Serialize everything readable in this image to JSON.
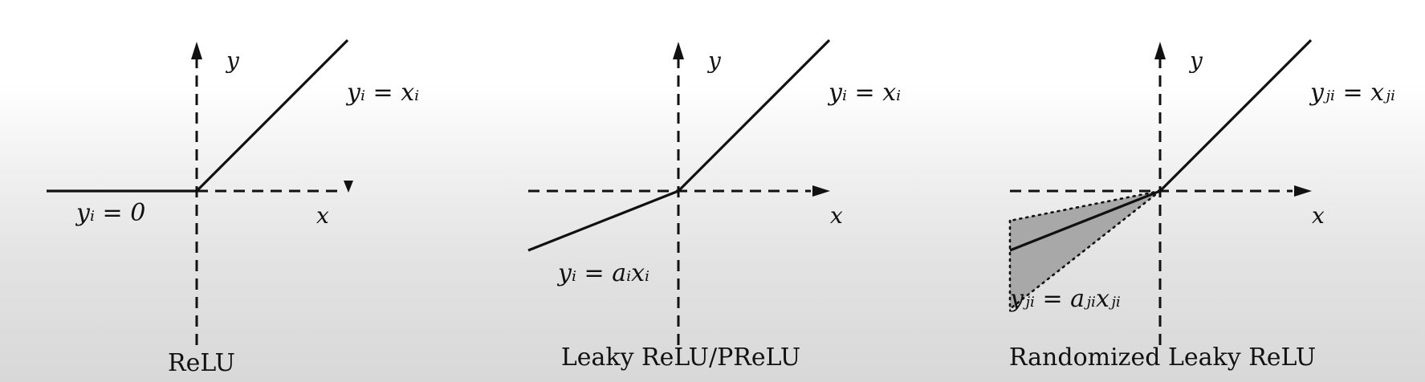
{
  "panels": [
    {
      "caption": "ReLU",
      "x_label": "x",
      "y_label": "y",
      "pos_eq": "yᵢ = xᵢ",
      "neg_eq": "yᵢ = 0"
    },
    {
      "caption": "Leaky ReLU/PReLU",
      "x_label": "x",
      "y_label": "y",
      "pos_eq": "yᵢ = xᵢ",
      "neg_eq": "yᵢ = aᵢxᵢ"
    },
    {
      "caption": "Randomized Leaky ReLU",
      "x_label": "x",
      "y_label": "y",
      "pos_eq": "yⱼᵢ = xⱼᵢ",
      "neg_eq": "yⱼᵢ = aⱼᵢxⱼᵢ"
    }
  ]
}
